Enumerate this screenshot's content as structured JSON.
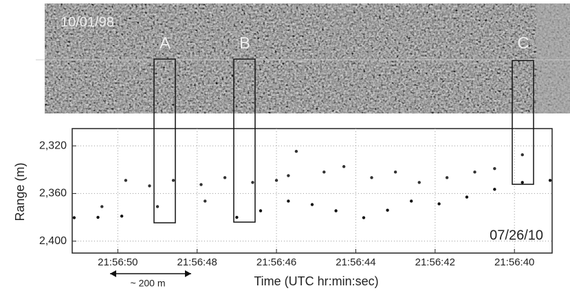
{
  "chart_data": {
    "type": "scatter",
    "image_date": "10/01/98",
    "box_labels": [
      "A",
      "B",
      "C"
    ],
    "annotation": "07/26/10",
    "scale_label": "~ 200 m",
    "x_label": "Time (UTC hr:min:sec)",
    "y_label": "Range (m)",
    "xlim": [
      51.15,
      39.05
    ],
    "xticks": [
      {
        "value": 50,
        "label": "21:56:50"
      },
      {
        "value": 48,
        "label": "21:56:48"
      },
      {
        "value": 46,
        "label": "21:56:46"
      },
      {
        "value": 44,
        "label": "21:56:44"
      },
      {
        "value": 42,
        "label": "21:56:42"
      },
      {
        "value": 40,
        "label": "21:56:40"
      }
    ],
    "ylim": [
      2410,
      2305.5
    ],
    "yticks": [
      {
        "value": 2320,
        "label": "2,320"
      },
      {
        "value": 2360,
        "label": "2,360"
      },
      {
        "value": 2400,
        "label": "2,400"
      }
    ],
    "grid": true,
    "series": [
      {
        "color": "#111111",
        "x": [
          51.1,
          50.5,
          49.9,
          47.0,
          46.4,
          45.7,
          45.1,
          44.5,
          43.8,
          43.2,
          42.6,
          41.9,
          41.2,
          40.5,
          39.8,
          39.1
        ],
        "y": [
          2380.3,
          2380,
          2379,
          2380,
          2374.5,
          2366.4,
          2369.3,
          2374.5,
          2380.3,
          2374,
          2366.4,
          2368.7,
          2363,
          2356.5,
          2350.7,
          2349
        ]
      },
      {
        "color": "#333333",
        "x": [
          49.8,
          49.2,
          48.6,
          47.9,
          47.3,
          46.6,
          46.0,
          45.5,
          44.8,
          44.3,
          43.6,
          43.0,
          42.4,
          41.7,
          41.0,
          40.5,
          39.8,
          50.4,
          49.0,
          47.8,
          45.7
        ],
        "y": [
          2349,
          2353.6,
          2349,
          2352.5,
          2346.7,
          2350.7,
          2349,
          2324.6,
          2342,
          2337.4,
          2346.7,
          2342,
          2350.7,
          2346.7,
          2342,
          2339.1,
          2327.5,
          2371,
          2371,
          2366.4,
          2345
        ]
      }
    ]
  }
}
